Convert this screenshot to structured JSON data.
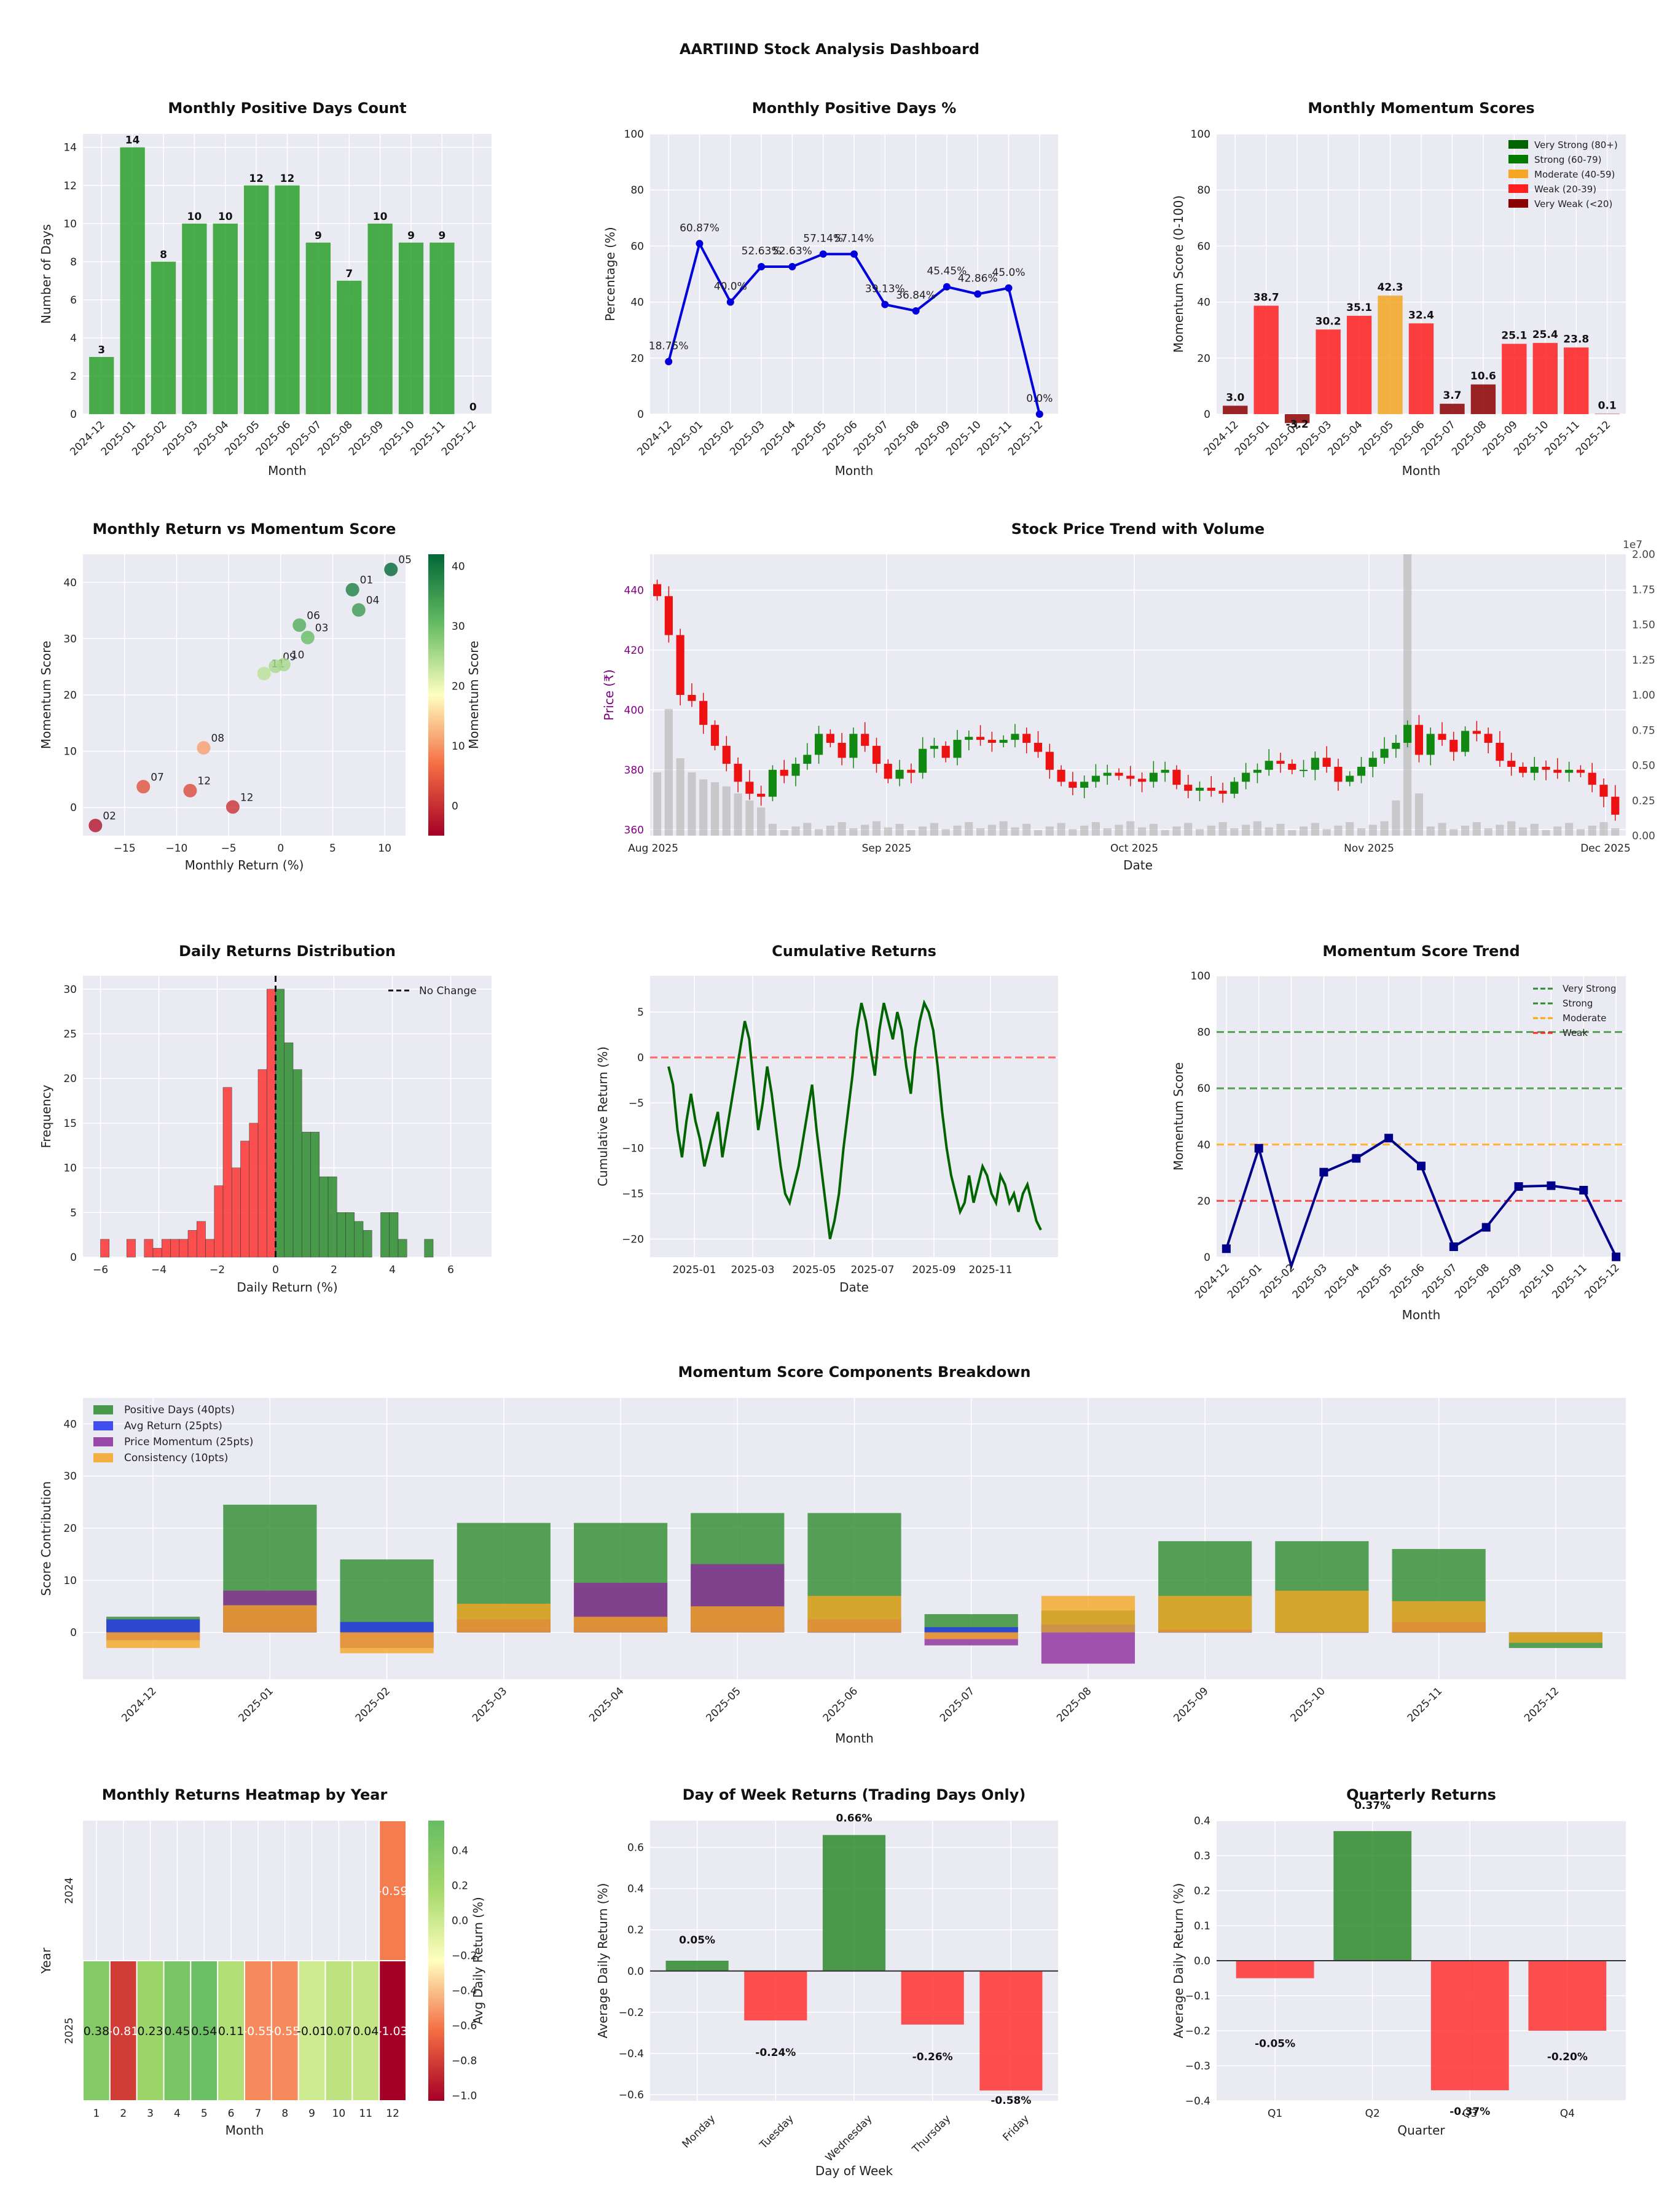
{
  "title": "AARTIIND Stock Analysis Dashboard",
  "months": [
    "2024-12",
    "2025-01",
    "2025-02",
    "2025-03",
    "2025-04",
    "2025-05",
    "2025-06",
    "2025-07",
    "2025-08",
    "2025-09",
    "2025-10",
    "2025-11",
    "2025-12"
  ],
  "colors": {
    "green": "#2ca02c",
    "red": "#ff1f1f",
    "darkred": "#8b0000",
    "orange": "#f5a623",
    "blue": "#0000dd",
    "navy": "#00008b",
    "purple": "#800080",
    "darkgreen": "#006400",
    "gray": "#b0b0b0",
    "plotbg": "#eaeaf2"
  },
  "chart_data": [
    {
      "id": "positive_days_count",
      "type": "bar",
      "title": "Monthly Positive Days Count",
      "xlabel": "Month",
      "ylabel": "Number of Days",
      "values": [
        3,
        14,
        8,
        10,
        10,
        12,
        12,
        9,
        7,
        10,
        9,
        9,
        0
      ],
      "labels": [
        "3",
        "14",
        "8",
        "10",
        "10",
        "12",
        "12",
        "9",
        "7",
        "10",
        "9",
        "9",
        "0"
      ],
      "ylim": [
        0,
        14.7
      ],
      "yticks": [
        "0",
        "2",
        "4",
        "6",
        "8",
        "10",
        "12",
        "14"
      ]
    },
    {
      "id": "positive_days_pct",
      "type": "line",
      "title": "Monthly Positive Days %",
      "xlabel": "Month",
      "ylabel": "Percentage (%)",
      "values": [
        18.75,
        60.87,
        40.0,
        52.63,
        52.63,
        57.14,
        57.14,
        39.13,
        36.84,
        45.45,
        42.86,
        45.0,
        0.0
      ],
      "labels": [
        "18.75%",
        "60.87%",
        "40.0%",
        "52.63%",
        "52.63%",
        "57.14%",
        "57.14%",
        "39.13%",
        "36.84%",
        "45.45%",
        "42.86%",
        "45.0%",
        "0.0%"
      ],
      "ylim": [
        0,
        100
      ],
      "yticks": [
        "0",
        "20",
        "40",
        "60",
        "80",
        "100"
      ]
    },
    {
      "id": "momentum_scores",
      "type": "bar",
      "title": "Monthly Momentum Scores",
      "xlabel": "Month",
      "ylabel": "Momentum Score (0-100)",
      "values": [
        3.0,
        38.7,
        -3.2,
        30.2,
        35.1,
        42.3,
        32.4,
        3.7,
        10.6,
        25.1,
        25.4,
        23.8,
        0.1
      ],
      "labels": [
        "3.0",
        "38.7",
        "-3.2",
        "30.2",
        "35.1",
        "42.3",
        "32.4",
        "3.7",
        "10.6",
        "25.1",
        "25.4",
        "23.8",
        "0.1"
      ],
      "ylim": [
        0,
        100
      ],
      "yticks": [
        "0",
        "20",
        "40",
        "60",
        "80",
        "100"
      ],
      "legend": [
        "Very Strong (80+)",
        "Strong (60-79)",
        "Moderate (40-59)",
        "Weak (20-39)",
        "Very Weak (<20)"
      ]
    },
    {
      "id": "return_vs_momentum",
      "type": "scatter",
      "title": "Monthly Return vs Momentum Score",
      "xlabel": "Monthly Return (%)",
      "ylabel": "Momentum Score",
      "colorbar_label": "Momentum Score",
      "points": [
        {
          "x": -17.8,
          "y": -3.2,
          "label": "02"
        },
        {
          "x": -13.2,
          "y": 3.7,
          "label": "07"
        },
        {
          "x": -8.7,
          "y": 3.0,
          "label": "12"
        },
        {
          "x": -7.4,
          "y": 10.6,
          "label": "08"
        },
        {
          "x": -4.6,
          "y": 0.1,
          "label": "12"
        },
        {
          "x": -1.6,
          "y": 23.8,
          "label": "11"
        },
        {
          "x": -0.5,
          "y": 25.1,
          "label": "09"
        },
        {
          "x": 0.3,
          "y": 25.4,
          "label": "10"
        },
        {
          "x": 1.8,
          "y": 32.4,
          "label": "06"
        },
        {
          "x": 2.6,
          "y": 30.2,
          "label": "03"
        },
        {
          "x": 6.9,
          "y": 38.7,
          "label": "01"
        },
        {
          "x": 7.5,
          "y": 35.1,
          "label": "04"
        },
        {
          "x": 10.6,
          "y": 42.3,
          "label": "05"
        }
      ],
      "xlim": [
        -19,
        12
      ],
      "ylim": [
        -5,
        45
      ],
      "xticks": [
        "−15",
        "−10",
        "−5",
        "0",
        "5",
        "10"
      ],
      "yticks": [
        "0",
        "10",
        "20",
        "30",
        "40"
      ],
      "cbar_ticks": [
        "0",
        "10",
        "20",
        "30",
        "40"
      ]
    },
    {
      "id": "price_volume",
      "type": "candlestick",
      "title": "Stock Price Trend with Volume",
      "xlabel": "Date",
      "ylabel": "Price (₹)",
      "xticks": [
        "Aug 2025",
        "Sep 2025",
        "Oct 2025",
        "Nov 2025",
        "Dec 2025"
      ],
      "yticks": [
        "360",
        "380",
        "400",
        "420",
        "440"
      ],
      "vol_ticks": [
        "0.00",
        "0.25",
        "0.50",
        "0.75",
        "1.00",
        "1.25",
        "1.50",
        "1.75",
        "2.00"
      ],
      "vol_exponent": "1e7",
      "ylim": [
        358,
        452
      ],
      "closes": [
        438,
        425,
        405,
        403,
        395,
        388,
        382,
        376,
        372,
        371,
        380,
        378,
        382,
        385,
        392,
        389,
        384,
        392,
        388,
        382,
        377,
        380,
        379,
        387,
        388,
        384,
        390,
        391,
        390,
        389,
        390,
        392,
        389,
        386,
        380,
        376,
        374,
        376,
        378,
        379,
        378,
        377,
        376,
        379,
        380,
        375,
        373,
        374,
        373,
        372,
        376,
        379,
        380,
        383,
        382,
        380,
        380,
        384,
        381,
        376,
        378,
        381,
        384,
        387,
        389,
        395,
        385,
        392,
        390,
        386,
        393,
        392,
        389,
        383,
        381,
        379,
        381,
        380,
        379,
        380,
        379,
        375,
        371,
        365
      ]
    },
    {
      "id": "returns_distribution",
      "type": "histogram",
      "title": "Daily Returns Distribution",
      "xlabel": "Daily Return (%)",
      "ylabel": "Frequency",
      "bin_width": 0.3,
      "bin_start": -6.0,
      "counts": [
        2,
        0,
        0,
        2,
        0,
        2,
        1,
        2,
        2,
        2,
        3,
        4,
        2,
        8,
        19,
        10,
        13,
        15,
        21,
        30,
        30,
        24,
        21,
        14,
        14,
        9,
        9,
        5,
        5,
        4,
        3,
        0,
        5,
        5,
        2,
        0,
        0,
        2
      ],
      "xlim": [
        -6.6,
        7.4
      ],
      "ylim": [
        0,
        31.5
      ],
      "xticks": [
        "−6",
        "−4",
        "−2",
        "0",
        "2",
        "4",
        "6"
      ],
      "yticks": [
        "0",
        "5",
        "10",
        "15",
        "20",
        "25",
        "30"
      ],
      "legend": "No Change"
    },
    {
      "id": "cumulative_returns",
      "type": "line",
      "title": "Cumulative Returns",
      "xlabel": "Date",
      "ylabel": "Cumulative Return (%)",
      "xticks": [
        "2025-01",
        "2025-03",
        "2025-05",
        "2025-07",
        "2025-09",
        "2025-11"
      ],
      "yticks": [
        "−20",
        "−15",
        "−10",
        "−5",
        "0",
        "5"
      ],
      "ylim": [
        -22,
        9
      ],
      "values": [
        -1,
        -3,
        -8,
        -11,
        -7,
        -4,
        -7,
        -9,
        -12,
        -10,
        -8,
        -6,
        -11,
        -8,
        -5,
        -2,
        1,
        4,
        2,
        -3,
        -8,
        -5,
        -1,
        -4,
        -8,
        -12,
        -15,
        -16,
        -14,
        -12,
        -9,
        -6,
        -3,
        -8,
        -12,
        -16,
        -20,
        -18,
        -15,
        -10,
        -6,
        -2,
        3,
        6,
        4,
        1,
        -2,
        3,
        6,
        4,
        2,
        5,
        3,
        -1,
        -4,
        1,
        4,
        6,
        5,
        3,
        -1,
        -6,
        -10,
        -13,
        -15,
        -17,
        -16,
        -13,
        -16,
        -14,
        -12,
        -13,
        -15,
        -16,
        -13,
        -14,
        -16,
        -15,
        -17,
        -15,
        -14,
        -16,
        -18,
        -19
      ]
    },
    {
      "id": "momentum_trend",
      "type": "line",
      "title": "Momentum Score Trend",
      "xlabel": "Month",
      "ylabel": "Momentum Score",
      "values": [
        3.0,
        38.7,
        -3.2,
        30.2,
        35.1,
        42.3,
        32.4,
        3.7,
        10.6,
        25.1,
        25.4,
        23.8,
        0.1
      ],
      "ylim": [
        0,
        100
      ],
      "yticks": [
        "0",
        "20",
        "40",
        "60",
        "80",
        "100"
      ],
      "refs": [
        {
          "name": "Very Strong",
          "value": 80
        },
        {
          "name": "Strong",
          "value": 60
        },
        {
          "name": "Moderate",
          "value": 40
        },
        {
          "name": "Weak",
          "value": 20
        }
      ]
    },
    {
      "id": "components_breakdown",
      "type": "stacked_bar",
      "title": "Momentum Score Components Breakdown",
      "xlabel": "Month",
      "ylabel": "Score Contribution",
      "series": [
        {
          "name": "Positive Days (40pts)",
          "values": [
            3,
            24.5,
            14,
            21,
            21,
            22.9,
            22.9,
            3.5,
            4.2,
            17.5,
            17.5,
            16,
            -3
          ]
        },
        {
          "name": "Avg Return (25pts)",
          "values": [
            2.5,
            1,
            2,
            0.5,
            1,
            1.2,
            0,
            1,
            1.5,
            0,
            0,
            0,
            0
          ]
        },
        {
          "name": "Price Momentum (25pts)",
          "values": [
            -1.5,
            8,
            -3,
            2.5,
            9.5,
            13.1,
            2.5,
            -2.5,
            -6,
            0.5,
            0,
            2,
            0
          ]
        },
        {
          "name": "Consistency (10pts)",
          "values": [
            -3,
            5.2,
            -4,
            5.5,
            3,
            5,
            7,
            -1.3,
            7,
            7,
            8,
            6,
            -2
          ]
        }
      ],
      "ylim": [
        -9,
        45
      ],
      "yticks": [
        "0",
        "10",
        "20",
        "30",
        "40"
      ]
    },
    {
      "id": "returns_heatmap",
      "type": "heatmap",
      "title": "Monthly Returns Heatmap by Year",
      "xlabel": "Month",
      "ylabel": "Year",
      "colorbar_label": "Avg Daily Return (%)",
      "rows": [
        "2024",
        "2025"
      ],
      "cols": [
        "1",
        "2",
        "3",
        "4",
        "5",
        "6",
        "7",
        "8",
        "9",
        "10",
        "11",
        "12"
      ],
      "values": [
        [
          null,
          null,
          null,
          null,
          null,
          null,
          null,
          null,
          null,
          null,
          null,
          -0.59
        ],
        [
          0.38,
          -0.81,
          0.23,
          0.45,
          0.54,
          0.11,
          -0.55,
          -0.55,
          -0.01,
          0.07,
          0.04,
          -1.03
        ]
      ],
      "labels": [
        [
          "",
          "",
          "",
          "",
          "",
          "",
          "",
          "",
          "",
          "",
          "",
          "-0.59"
        ],
        [
          "0.38",
          "-0.81",
          "0.23",
          "0.45",
          "0.54",
          "0.11",
          "-0.55",
          "-0.55",
          "-0.01",
          "0.07",
          "0.04",
          "-1.03"
        ]
      ],
      "cbar_ticks": [
        "0.4",
        "0.2",
        "0.0",
        "−0.2",
        "−0.4",
        "−0.6",
        "−0.8",
        "−1.0"
      ]
    },
    {
      "id": "day_of_week",
      "type": "bar",
      "title": "Day of Week Returns (Trading Days Only)",
      "xlabel": "Day of Week",
      "ylabel": "Average Daily Return (%)",
      "categories": [
        "Monday",
        "Tuesday",
        "Wednesday",
        "Thursday",
        "Friday"
      ],
      "values": [
        0.05,
        -0.24,
        0.66,
        -0.26,
        -0.58
      ],
      "labels": [
        "0.05%",
        "-0.24%",
        "0.66%",
        "-0.26%",
        "-0.58%"
      ],
      "ylim": [
        -0.63,
        0.73
      ],
      "yticks": [
        "0.6",
        "0.4",
        "0.2",
        "0.0",
        "−0.2",
        "−0.4",
        "−0.6"
      ]
    },
    {
      "id": "quarterly_returns",
      "type": "bar",
      "title": "Quarterly Returns",
      "xlabel": "Quarter",
      "ylabel": "Average Daily Return (%)",
      "categories": [
        "Q1",
        "Q2",
        "Q3",
        "Q4"
      ],
      "values": [
        -0.05,
        0.37,
        -0.37,
        -0.2
      ],
      "labels": [
        "-0.05%",
        "0.37%",
        "-0.37%",
        "-0.20%"
      ],
      "ylim": [
        -0.4,
        0.4
      ],
      "yticks": [
        "0.4",
        "0.3",
        "0.2",
        "0.1",
        "0.0",
        "−0.1",
        "−0.2",
        "−0.3",
        "−0.4"
      ]
    }
  ]
}
